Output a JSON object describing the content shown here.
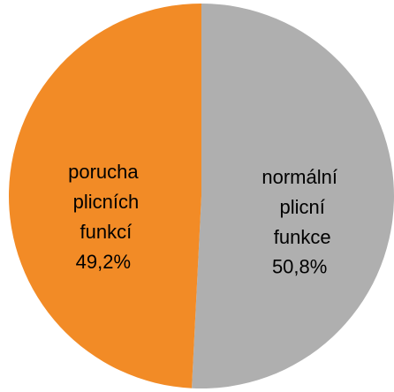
{
  "chart_data": {
    "type": "pie",
    "categories": [
      "normální plicní funkce",
      "porucha plicních funkcí"
    ],
    "values": [
      50.8,
      49.2
    ],
    "value_labels": [
      "50,8%",
      "49,2%"
    ],
    "colors": [
      "#afafaf",
      "#f28b26"
    ]
  }
}
